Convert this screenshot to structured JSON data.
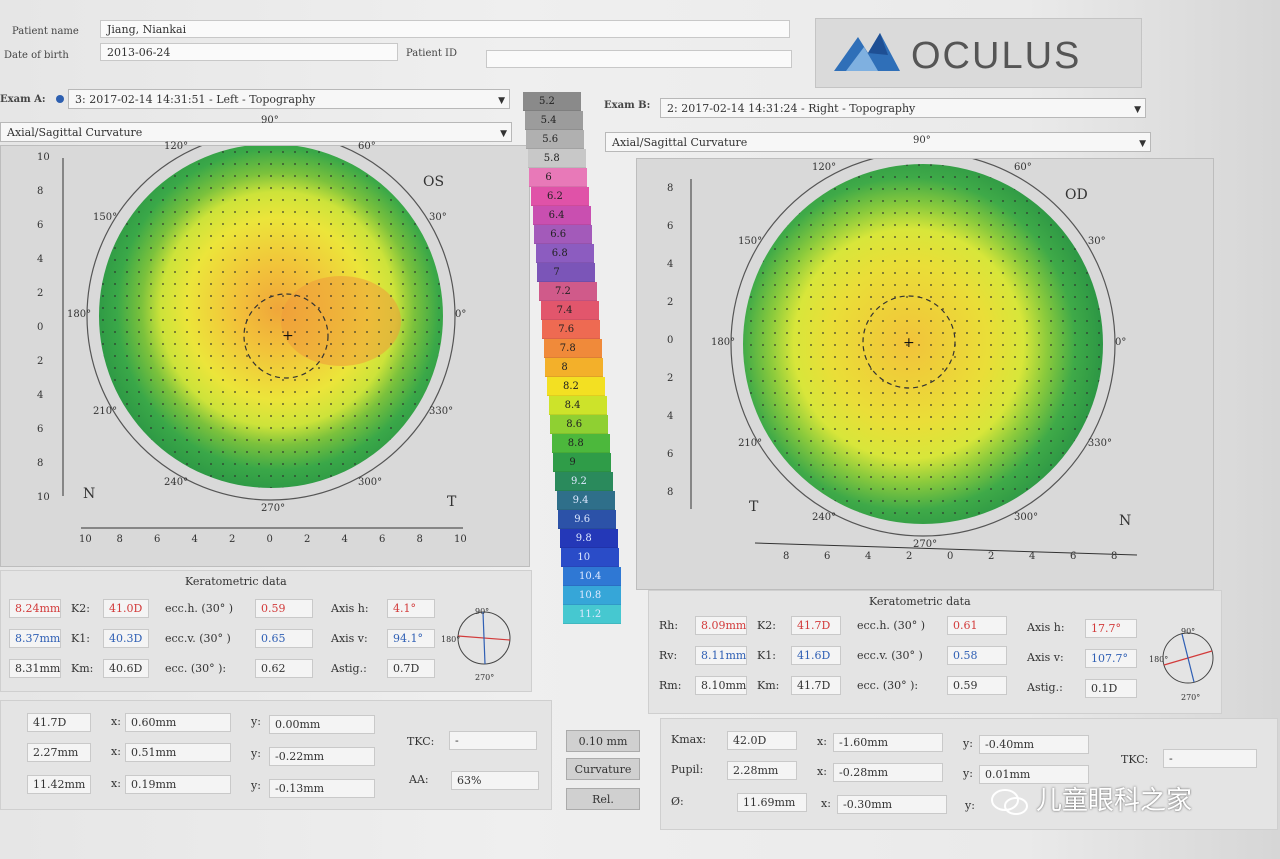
{
  "patient": {
    "name_label": "Patient name",
    "name_value": "Jiang, Niankai",
    "dob_label": "Date of birth",
    "dob_value": "2013-06-24",
    "id_label": "Patient ID",
    "id_value": ""
  },
  "logo": {
    "text": "OCULUS"
  },
  "exam_a": {
    "label": "Exam A:",
    "value": "3: 2017-02-14 14:31:51 - Left - Topography",
    "map_type": "Axial/Sagittal Curvature",
    "eye": "OS",
    "nasal": "N",
    "temporal": "T",
    "axis_angles": [
      "90°",
      "60°",
      "30°",
      "0°",
      "330°",
      "300°",
      "270°",
      "240°",
      "210°",
      "180°",
      "150°",
      "120°"
    ],
    "x_ticks": [
      "10",
      "8",
      "6",
      "4",
      "2",
      "0",
      "2",
      "4",
      "6",
      "8",
      "10"
    ],
    "y_ticks": [
      "10",
      "8",
      "6",
      "4",
      "2",
      "0",
      "2",
      "4",
      "6",
      "8",
      "10"
    ]
  },
  "exam_b": {
    "label": "Exam B:",
    "value": "2: 2017-02-14 14:31:24 - Right - Topography",
    "map_type": "Axial/Sagittal Curvature",
    "eye": "OD",
    "nasal": "N",
    "temporal": "T",
    "axis_angles": [
      "90°",
      "60°",
      "30°",
      "0°",
      "330°",
      "300°",
      "270°",
      "240°",
      "210°",
      "180°",
      "150°",
      "120°"
    ],
    "x_ticks": [
      "8",
      "6",
      "4",
      "2",
      "0",
      "2",
      "4",
      "6",
      "8"
    ],
    "y_ticks": [
      "8",
      "6",
      "4",
      "2",
      "0",
      "2",
      "4",
      "6",
      "8"
    ]
  },
  "scale": {
    "values": [
      "5.2",
      "5.4",
      "5.6",
      "5.8",
      "6",
      "6.2",
      "6.4",
      "6.6",
      "6.8",
      "7",
      "7.2",
      "7.4",
      "7.6",
      "7.8",
      "8",
      "8.2",
      "8.4",
      "8.6",
      "8.8",
      "9",
      "9.2",
      "9.4",
      "9.6",
      "9.8",
      "10",
      "10.4",
      "10.8",
      "11.2"
    ],
    "colors": [
      "#8a8a8a",
      "#9c9c9c",
      "#b0b0b0",
      "#c8c8c8",
      "#e879b8",
      "#e052a8",
      "#c94fb0",
      "#a35aba",
      "#8c5cc0",
      "#7b55b8",
      "#d05a8a",
      "#e2566c",
      "#ee6a52",
      "#f08a3a",
      "#f3b02a",
      "#f3e022",
      "#cde32a",
      "#8fd032",
      "#4cb83c",
      "#2f9c48",
      "#2a8a5c",
      "#2f6f8a",
      "#2c52a8",
      "#2438b8",
      "#2a4cc8",
      "#2f78d4",
      "#36a6d8",
      "#46c8d0"
    ],
    "button_step": "0.10 mm",
    "button_curvature": "Curvature",
    "button_rel": "Rel."
  },
  "kerato_a": {
    "title": "Keratometric data",
    "rows": [
      {
        "r_value": "8.24mm",
        "k_label": "K2:",
        "k_value": "41.0D",
        "ecc_label": "ecc.h. (30° )",
        "ecc_value": "0.59",
        "axis_label": "Axis h:",
        "axis_value": "4.1°"
      },
      {
        "r_value": "8.37mm",
        "k_label": "K1:",
        "k_value": "40.3D",
        "ecc_label": "ecc.v. (30° )",
        "ecc_value": "0.65",
        "axis_label": "Axis v:",
        "axis_value": "94.1°"
      },
      {
        "r_value": "8.31mm",
        "k_label": "Km:",
        "k_value": "40.6D",
        "ecc_label": "ecc. (30° ):",
        "ecc_value": "0.62",
        "axis_label": "Astig.:",
        "axis_value": "0.7D"
      }
    ],
    "mini_top": "90°",
    "mini_left": "180°",
    "mini_bottom": "270°"
  },
  "kerato_b": {
    "title": "Keratometric data",
    "rows": [
      {
        "r_label": "Rh:",
        "r_value": "8.09mm",
        "k_label": "K2:",
        "k_value": "41.7D",
        "ecc_label": "ecc.h. (30° )",
        "ecc_value": "0.61",
        "axis_label": "Axis h:",
        "axis_value": "17.7°"
      },
      {
        "r_label": "Rv:",
        "r_value": "8.11mm",
        "k_label": "K1:",
        "k_value": "41.6D",
        "ecc_label": "ecc.v. (30° )",
        "ecc_value": "0.58",
        "axis_label": "Axis v:",
        "axis_value": "107.7°"
      },
      {
        "r_label": "Rm:",
        "r_value": "8.10mm",
        "k_label": "Km:",
        "k_value": "41.7D",
        "ecc_label": "ecc. (30° ):",
        "ecc_value": "0.59",
        "axis_label": "Astig.:",
        "axis_value": "0.1D"
      }
    ],
    "mini_top": "90°",
    "mini_left": "180°",
    "mini_bottom": "270°"
  },
  "pupil_a": {
    "rows": [
      {
        "value": "41.7D",
        "x_label": "x:",
        "x_value": "0.60mm",
        "y_label": "y:",
        "y_value": "0.00mm"
      },
      {
        "value": "2.27mm",
        "x_label": "x:",
        "x_value": "0.51mm",
        "y_label": "y:",
        "y_value": "-0.22mm"
      },
      {
        "value": "11.42mm",
        "x_label": "x:",
        "x_value": "0.19mm",
        "y_label": "y:",
        "y_value": "-0.13mm"
      }
    ],
    "tkc_label": "TKC:",
    "tkc_value": "-",
    "aa_label": "AA:",
    "aa_value": "63%"
  },
  "pupil_b": {
    "rows": [
      {
        "label": "Kmax:",
        "value": "42.0D",
        "x_label": "x:",
        "x_value": "-1.60mm",
        "y_label": "y:",
        "y_value": "-0.40mm"
      },
      {
        "label": "Pupil:",
        "value": "2.28mm",
        "x_label": "x:",
        "x_value": "-0.28mm",
        "y_label": "y:",
        "y_value": "0.01mm"
      },
      {
        "label": "Ø:",
        "value": "11.69mm",
        "x_label": "x:",
        "x_value": "-0.30mm",
        "y_label": "y:",
        "y_value": ""
      }
    ],
    "tkc_label": "TKC:",
    "tkc_value": "-"
  },
  "watermark": "儿童眼科之家"
}
